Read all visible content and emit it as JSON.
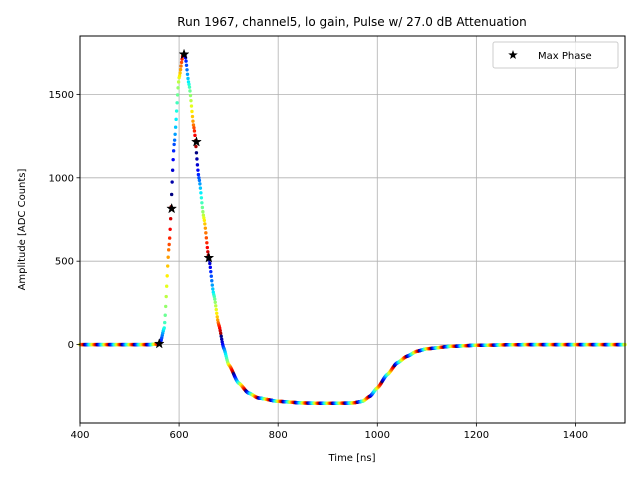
{
  "chart_data": {
    "type": "scatter",
    "title": "Run 1967, channel5, lo gain, Pulse w/ 27.0 dB Attenuation",
    "xlabel": "Time [ns]",
    "ylabel": "Amplitude [ADC Counts]",
    "xlim": [
      400,
      1500
    ],
    "ylim": [
      -470,
      1850
    ],
    "xticks": [
      400,
      600,
      800,
      1000,
      1200,
      1400
    ],
    "yticks": [
      0,
      500,
      1000,
      1500
    ],
    "grid": true,
    "legend": {
      "placement": "top-right",
      "entries": [
        "Max Phase"
      ]
    },
    "colormap": "jet",
    "phase_period_ns": 25,
    "waveform": [
      [
        400,
        0
      ],
      [
        540,
        0
      ],
      [
        555,
        3
      ],
      [
        562,
        10
      ],
      [
        570,
        100
      ],
      [
        580,
        600
      ],
      [
        590,
        1200
      ],
      [
        600,
        1600
      ],
      [
        608,
        1740
      ],
      [
        612,
        1735
      ],
      [
        620,
        1560
      ],
      [
        630,
        1300
      ],
      [
        640,
        1000
      ],
      [
        650,
        760
      ],
      [
        660,
        520
      ],
      [
        670,
        300
      ],
      [
        680,
        120
      ],
      [
        690,
        -20
      ],
      [
        700,
        -120
      ],
      [
        720,
        -230
      ],
      [
        740,
        -290
      ],
      [
        760,
        -320
      ],
      [
        800,
        -340
      ],
      [
        850,
        -350
      ],
      [
        900,
        -352
      ],
      [
        950,
        -350
      ],
      [
        970,
        -340
      ],
      [
        985,
        -310
      ],
      [
        1000,
        -260
      ],
      [
        1020,
        -180
      ],
      [
        1040,
        -110
      ],
      [
        1060,
        -70
      ],
      [
        1080,
        -40
      ],
      [
        1100,
        -25
      ],
      [
        1150,
        -10
      ],
      [
        1200,
        -4
      ],
      [
        1300,
        0
      ],
      [
        1500,
        0
      ]
    ],
    "max_phase": {
      "name": "Max Phase",
      "x": [
        560,
        585,
        610,
        635,
        660
      ],
      "y": [
        5,
        815,
        1740,
        1215,
        520
      ]
    }
  }
}
